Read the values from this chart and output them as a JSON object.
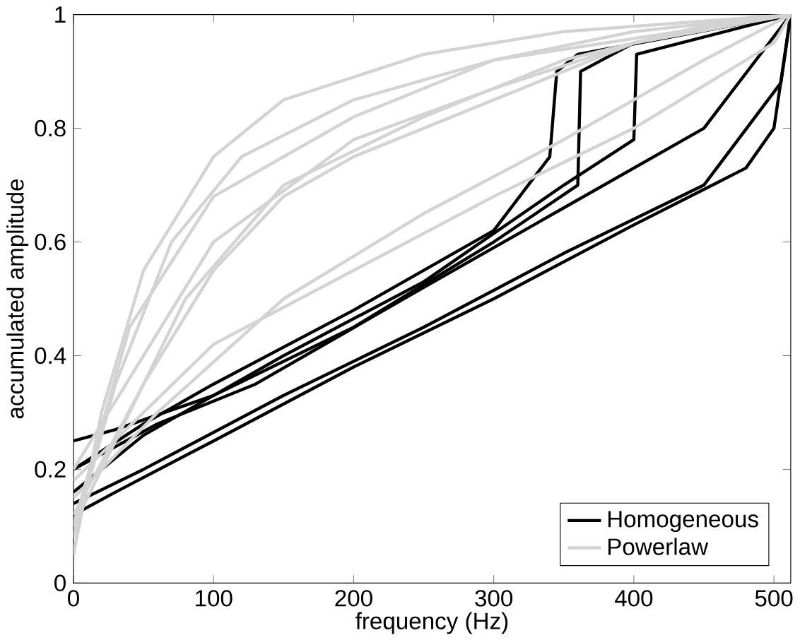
{
  "chart_data": {
    "type": "line",
    "xlabel": "frequency (Hz)",
    "ylabel": "accumulated amplitude",
    "xlim": [
      0,
      512
    ],
    "ylim": [
      0,
      1
    ],
    "xticks": [
      0,
      100,
      200,
      300,
      400,
      500
    ],
    "yticks": [
      0,
      0.2,
      0.4,
      0.6,
      0.8,
      1
    ],
    "legend": "bottom right",
    "grid": false,
    "marker": "none",
    "line_style": "solid",
    "series": [
      {
        "name": "Homogeneous",
        "color": "#000000",
        "x": [
          0,
          30,
          100,
          200,
          300,
          360,
          362,
          400,
          512
        ],
        "values": [
          0.25,
          0.27,
          0.33,
          0.45,
          0.6,
          0.7,
          0.9,
          0.95,
          1
        ]
      },
      {
        "color": "#000000",
        "x": [
          0,
          50,
          100,
          200,
          300,
          340,
          345,
          360,
          512
        ],
        "values": [
          0.2,
          0.28,
          0.35,
          0.48,
          0.62,
          0.75,
          0.9,
          0.93,
          1
        ]
      },
      {
        "color": "#000000",
        "x": [
          0,
          50,
          150,
          250,
          350,
          400,
          402,
          512
        ],
        "values": [
          0.16,
          0.26,
          0.4,
          0.53,
          0.7,
          0.78,
          0.93,
          1
        ]
      },
      {
        "color": "#000000",
        "x": [
          0,
          30,
          100,
          200,
          300,
          400,
          480,
          500,
          512
        ],
        "values": [
          0.12,
          0.16,
          0.25,
          0.38,
          0.5,
          0.63,
          0.73,
          0.8,
          1
        ]
      },
      {
        "color": "#000000",
        "x": [
          0,
          50,
          150,
          250,
          350,
          450,
          505,
          512
        ],
        "values": [
          0.14,
          0.2,
          0.33,
          0.45,
          0.58,
          0.7,
          0.88,
          1
        ]
      },
      {
        "color": "#000000",
        "x": [
          0,
          60,
          130,
          250,
          350,
          450,
          512
        ],
        "values": [
          0.2,
          0.28,
          0.35,
          0.52,
          0.66,
          0.8,
          1
        ]
      },
      {
        "name": "Powerlaw",
        "color": "#d3d3d3",
        "x": [
          0,
          20,
          50,
          100,
          150,
          250,
          350,
          512
        ],
        "values": [
          0.05,
          0.3,
          0.55,
          0.75,
          0.85,
          0.93,
          0.97,
          1
        ]
      },
      {
        "color": "#d3d3d3",
        "x": [
          0,
          30,
          70,
          120,
          200,
          300,
          400,
          512
        ],
        "values": [
          0.08,
          0.35,
          0.6,
          0.75,
          0.85,
          0.92,
          0.97,
          1
        ]
      },
      {
        "color": "#d3d3d3",
        "x": [
          0,
          40,
          80,
          150,
          250,
          350,
          450,
          512
        ],
        "values": [
          0.1,
          0.3,
          0.5,
          0.7,
          0.82,
          0.92,
          0.98,
          1
        ]
      },
      {
        "color": "#d3d3d3",
        "x": [
          0,
          50,
          100,
          150,
          200,
          300,
          400,
          512
        ],
        "values": [
          0.12,
          0.35,
          0.55,
          0.68,
          0.75,
          0.85,
          0.95,
          1
        ]
      },
      {
        "color": "#d3d3d3",
        "x": [
          0,
          60,
          150,
          250,
          350,
          450,
          512
        ],
        "values": [
          0.15,
          0.3,
          0.5,
          0.65,
          0.78,
          0.92,
          1
        ]
      },
      {
        "color": "#d3d3d3",
        "x": [
          0,
          50,
          100,
          200,
          300,
          400,
          512
        ],
        "values": [
          0.2,
          0.4,
          0.6,
          0.78,
          0.87,
          0.95,
          1
        ]
      },
      {
        "color": "#d3d3d3",
        "x": [
          0,
          100,
          200,
          300,
          400,
          500,
          512
        ],
        "values": [
          0.18,
          0.42,
          0.55,
          0.68,
          0.8,
          0.95,
          1
        ]
      },
      {
        "color": "#d3d3d3",
        "x": [
          0,
          40,
          100,
          200,
          300,
          512
        ],
        "values": [
          0.1,
          0.45,
          0.68,
          0.82,
          0.92,
          1
        ]
      }
    ]
  }
}
